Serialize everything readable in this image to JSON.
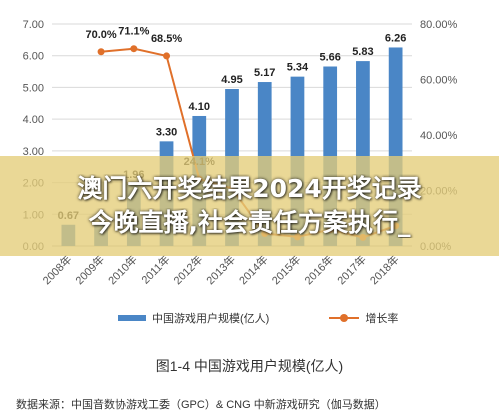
{
  "chart_data": {
    "type": "bar",
    "categories": [
      "2008年",
      "2009年",
      "2010年",
      "2011年",
      "2012年",
      "2013年",
      "2014年",
      "2015年",
      "2016年",
      "2017年",
      "2018年"
    ],
    "series": [
      {
        "name": "中国游戏用户规模(亿人)",
        "type": "bar",
        "axis": "left",
        "values": [
          0.67,
          0.7,
          1.96,
          3.3,
          4.1,
          4.95,
          5.17,
          5.34,
          5.66,
          5.83,
          6.26
        ],
        "labels": [
          "0.67",
          "",
          "1.96",
          "3.30",
          "4.10",
          "4.95",
          "5.17",
          "5.34",
          "5.66",
          "5.83",
          "6.26"
        ],
        "color": "#4a86c6"
      },
      {
        "name": "增长率",
        "type": "line",
        "axis": "right",
        "values": [
          null,
          70.0,
          71.1,
          68.5,
          24.1,
          20.7,
          4.5,
          3.3,
          5.9,
          3.1,
          7.3
        ],
        "labels": [
          "",
          "70.0%",
          "71.1%",
          "68.5%",
          "24.1%",
          "",
          "",
          "",
          "",
          "",
          ""
        ],
        "color": "#e0702a"
      }
    ],
    "ylim_left": [
      0,
      7
    ],
    "ylim_right": [
      0,
      80
    ],
    "yticks_left": [
      "0.00",
      "1.00",
      "2.00",
      "3.00",
      "4.00",
      "5.00",
      "6.00",
      "7.00"
    ],
    "yticks_right": [
      "0.00%",
      "20.00%",
      "40.00%",
      "60.00%",
      "80.00%"
    ],
    "grid": true,
    "legend_position": "bottom"
  },
  "legend": {
    "bar_label": "中国游戏用户规模(亿人)",
    "line_label": "增长率"
  },
  "caption": "图1-4  中国游戏用户规模(亿人)",
  "source": "数据来源：中国音数协游戏工委（GPC）& CNG 中新游戏研究（伽马数据）",
  "banner": {
    "line1": "澳门六开奖结果2024开奖记录",
    "line2": "今晚直播,社会责任方案执行_"
  }
}
